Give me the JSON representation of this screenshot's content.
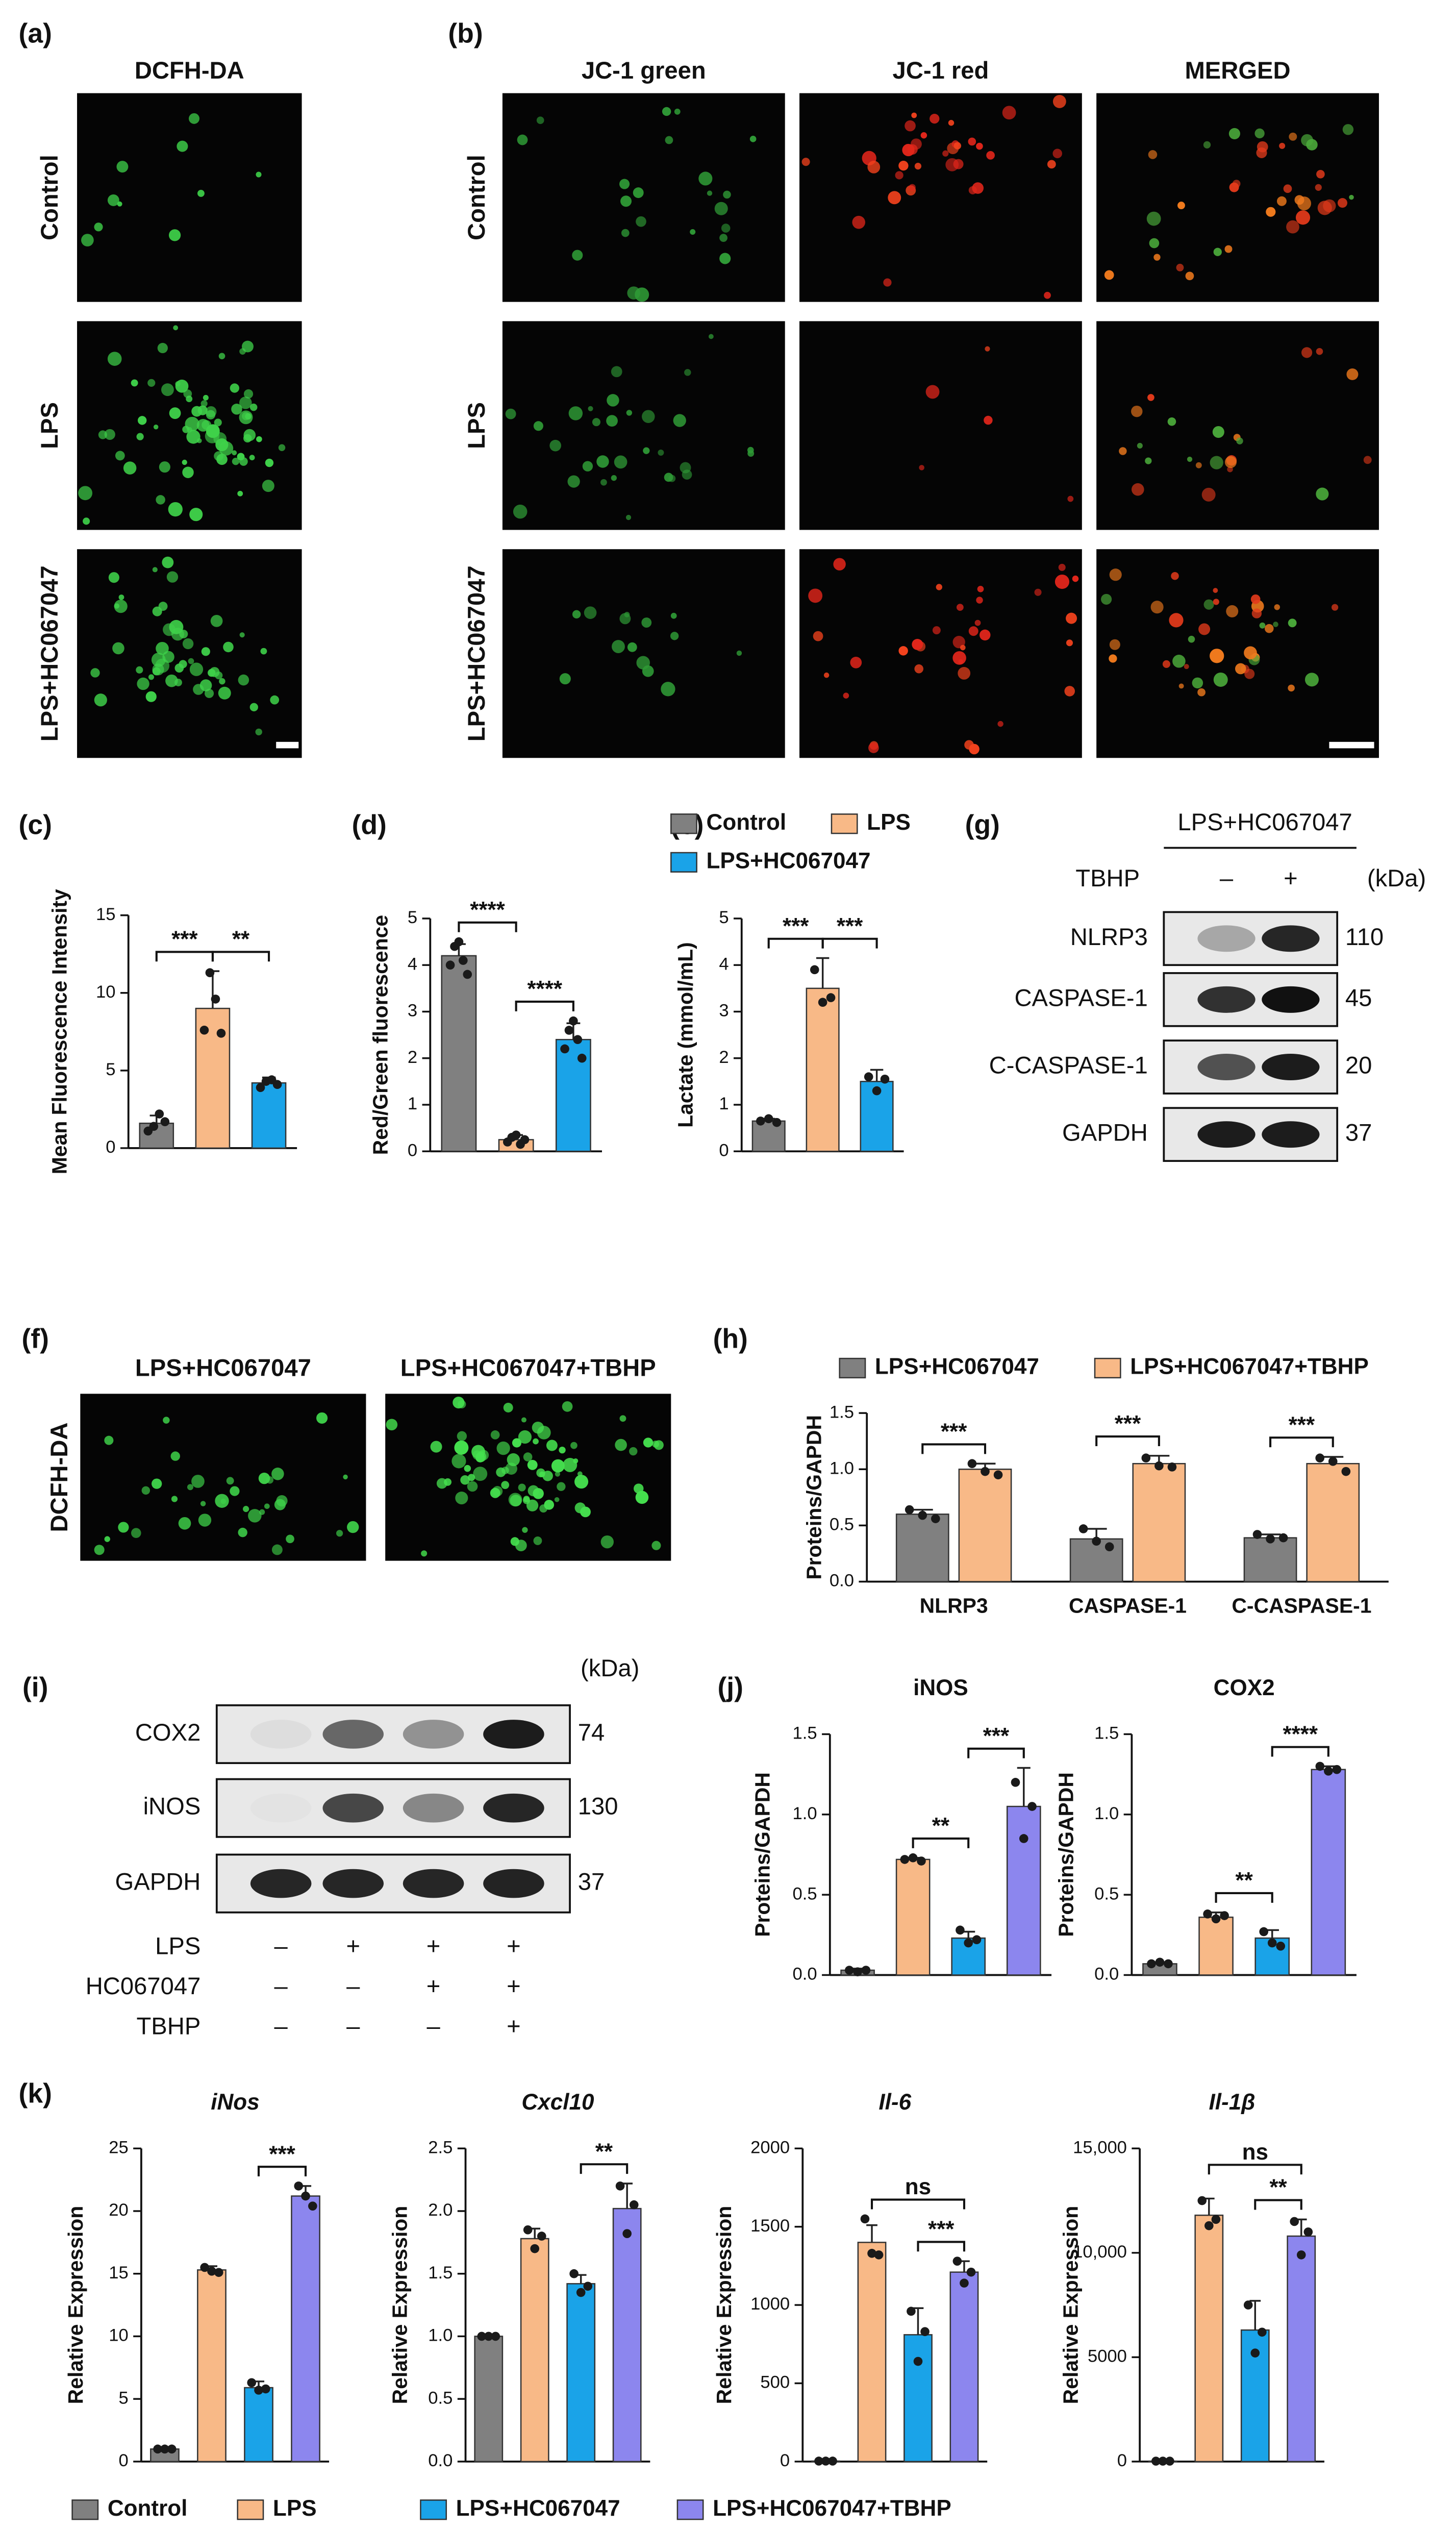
{
  "chart_data": [
    {
      "type": "bar",
      "panel": "(c)",
      "ylabel": "Mean Fluorescence Intensity",
      "ylim": [
        0,
        15
      ],
      "yticks": [
        0,
        5,
        10,
        15
      ],
      "values": [
        1.6,
        9.0,
        4.2
      ],
      "errors": [
        0.5,
        2.4,
        0.35
      ],
      "points": [
        [
          1.1,
          1.4,
          2.2,
          1.7
        ],
        [
          7.6,
          11.3,
          9.6,
          7.4
        ],
        [
          3.9,
          4.3,
          4.4,
          4.1
        ]
      ],
      "colors": [
        "#808080",
        "#f8b987",
        "#1aa3e8"
      ],
      "annotations": [
        {
          "text": "***",
          "from": 0,
          "to": 1
        },
        {
          "text": "**",
          "from": 1,
          "to": 2
        }
      ]
    },
    {
      "type": "bar",
      "panel": "(d)",
      "ylabel": "Red/Green fluorescence",
      "ylim": [
        0,
        5
      ],
      "yticks": [
        0,
        1,
        2,
        3,
        4,
        5
      ],
      "values": [
        4.2,
        0.25,
        2.4
      ],
      "errors": [
        0.25,
        0.1,
        0.35
      ],
      "points": [
        [
          4.0,
          4.4,
          4.5,
          4.1,
          3.8
        ],
        [
          0.2,
          0.3,
          0.35,
          0.15,
          0.25
        ],
        [
          2.2,
          2.6,
          2.8,
          2.4,
          2.0
        ]
      ],
      "colors": [
        "#808080",
        "#f8b987",
        "#1aa3e8"
      ],
      "annotations": [
        {
          "text": "****",
          "from": 0,
          "to": 1
        },
        {
          "text": "****",
          "from": 1,
          "to": 2
        }
      ]
    },
    {
      "type": "bar",
      "panel": "(e)",
      "ylabel": "Lactate (mmol/mL)",
      "ylim": [
        0,
        5
      ],
      "yticks": [
        0,
        1,
        2,
        3,
        4,
        5
      ],
      "values": [
        0.65,
        3.5,
        1.5
      ],
      "errors": [
        0.05,
        0.65,
        0.25
      ],
      "points": [
        [
          0.65,
          0.7,
          0.62
        ],
        [
          3.9,
          3.2,
          3.3
        ],
        [
          1.6,
          1.3,
          1.55
        ]
      ],
      "colors": [
        "#808080",
        "#f8b987",
        "#1aa3e8"
      ],
      "annotations": [
        {
          "text": "***",
          "from": 0,
          "to": 1
        },
        {
          "text": "***",
          "from": 1,
          "to": 2
        }
      ]
    },
    {
      "type": "grouped-bar",
      "panel": "(h)",
      "ylabel": "Proteins/GAPDH",
      "ylim": [
        0,
        1.5
      ],
      "yticks": [
        {
          "value": 0,
          "label": "0.0"
        },
        {
          "value": 0.5,
          "label": "0.5"
        },
        {
          "value": 1,
          "label": "1.0"
        },
        {
          "value": 1.5,
          "label": "1.5"
        }
      ],
      "categories": [
        "NLRP3",
        "CASPASE-1",
        "C-CASPASE-1"
      ],
      "series": [
        {
          "name": "LPS+HC067047",
          "color": "#808080",
          "values": [
            0.6,
            0.38,
            0.39
          ],
          "errors": [
            0.04,
            0.09,
            0.03
          ],
          "points": [
            [
              0.64,
              0.59,
              0.56
            ],
            [
              0.47,
              0.36,
              0.31
            ],
            [
              0.42,
              0.38,
              0.39
            ]
          ]
        },
        {
          "name": "LPS+HC067047+TBHP",
          "color": "#f8b987",
          "values": [
            1.0,
            1.05,
            1.05
          ],
          "errors": [
            0.05,
            0.07,
            0.06
          ],
          "points": [
            [
              1.05,
              0.98,
              0.95
            ],
            [
              1.1,
              1.03,
              1.02
            ],
            [
              1.1,
              1.07,
              0.98
            ]
          ]
        }
      ],
      "annotations": [
        {
          "text": "***",
          "category": 0
        },
        {
          "text": "***",
          "category": 1
        },
        {
          "text": "***",
          "category": 2
        }
      ]
    },
    {
      "type": "bar",
      "panel": "(j)",
      "title": "iNOS",
      "ylabel": "Proteins/GAPDH",
      "ylim": [
        0,
        1.5
      ],
      "yticks": [
        {
          "value": 0,
          "label": "0.0"
        },
        {
          "value": 0.5,
          "label": "0.5"
        },
        {
          "value": 1,
          "label": "1.0"
        },
        {
          "value": 1.5,
          "label": "1.5"
        }
      ],
      "values": [
        0.03,
        0.72,
        0.23,
        1.05
      ],
      "errors": [
        0.01,
        0.01,
        0.04,
        0.24
      ],
      "points": [
        [
          0.03,
          0.02,
          0.03
        ],
        [
          0.72,
          0.73,
          0.71
        ],
        [
          0.28,
          0.2,
          0.22
        ],
        [
          1.2,
          0.85,
          1.05
        ]
      ],
      "colors": [
        "#808080",
        "#f8b987",
        "#1aa3e8",
        "#8c86ee"
      ],
      "annotations": [
        {
          "text": "**",
          "from": 1,
          "to": 2
        },
        {
          "text": "***",
          "from": 2,
          "to": 3
        }
      ]
    },
    {
      "type": "bar",
      "title": "COX2",
      "ylabel": "Proteins/GAPDH",
      "ylim": [
        0,
        1.5
      ],
      "yticks": [
        {
          "value": 0,
          "label": "0.0"
        },
        {
          "value": 0.5,
          "label": "0.5"
        },
        {
          "value": 1,
          "label": "1.0"
        },
        {
          "value": 1.5,
          "label": "1.5"
        }
      ],
      "values": [
        0.07,
        0.36,
        0.23,
        1.28
      ],
      "errors": [
        0.01,
        0.03,
        0.05,
        0.02
      ],
      "points": [
        [
          0.07,
          0.08,
          0.07
        ],
        [
          0.38,
          0.35,
          0.37
        ],
        [
          0.27,
          0.2,
          0.18
        ],
        [
          1.3,
          1.27,
          1.28
        ]
      ],
      "colors": [
        "#808080",
        "#f8b987",
        "#1aa3e8",
        "#8c86ee"
      ],
      "annotations": [
        {
          "text": "**",
          "from": 1,
          "to": 2
        },
        {
          "text": "****",
          "from": 2,
          "to": 3
        }
      ]
    },
    {
      "type": "bar",
      "panel": "(k)",
      "title": "iNos",
      "ylabel": "Relative Expression",
      "ylim": [
        0,
        25
      ],
      "yticks": [
        0,
        5,
        10,
        15,
        20,
        25
      ],
      "values": [
        1.0,
        15.3,
        5.9,
        21.2
      ],
      "errors": [
        0.1,
        0.3,
        0.5,
        0.8
      ],
      "points": [
        [
          1.0,
          1.0,
          1.0
        ],
        [
          15.5,
          15.2,
          15.1
        ],
        [
          6.3,
          5.7,
          5.8
        ],
        [
          22.0,
          21.2,
          20.4
        ]
      ],
      "colors": [
        "#808080",
        "#f8b987",
        "#1aa3e8",
        "#8c86ee"
      ],
      "annotations": [
        {
          "text": "***",
          "from": 2,
          "to": 3
        }
      ]
    },
    {
      "type": "bar",
      "title": "Cxcl10",
      "ylabel": "Relative Expression",
      "ylim": [
        0,
        2.5
      ],
      "yticks": [
        {
          "value": 0,
          "label": "0.0"
        },
        {
          "value": 0.5,
          "label": "0.5"
        },
        {
          "value": 1,
          "label": "1.0"
        },
        {
          "value": 1.5,
          "label": "1.5"
        },
        {
          "value": 2,
          "label": "2.0"
        },
        {
          "value": 2.5,
          "label": "2.5"
        }
      ],
      "values": [
        1.0,
        1.78,
        1.42,
        2.02
      ],
      "errors": [
        0.01,
        0.08,
        0.07,
        0.2
      ],
      "points": [
        [
          1.0,
          1.0,
          1.0
        ],
        [
          1.85,
          1.7,
          1.8
        ],
        [
          1.5,
          1.35,
          1.4
        ],
        [
          2.2,
          1.82,
          2.05
        ]
      ],
      "colors": [
        "#808080",
        "#f8b987",
        "#1aa3e8",
        "#8c86ee"
      ],
      "annotations": [
        {
          "text": "**",
          "from": 2,
          "to": 3
        }
      ]
    },
    {
      "type": "bar",
      "title": "Il-6",
      "ylabel": "Relative Expression",
      "ylim": [
        0,
        2000
      ],
      "yticks": [
        0,
        500,
        1000,
        1500,
        2000
      ],
      "values": [
        3,
        1400,
        810,
        1210
      ],
      "errors": [
        2,
        110,
        170,
        70
      ],
      "points": [
        [
          3,
          3,
          3
        ],
        [
          1550,
          1330,
          1320
        ],
        [
          960,
          640,
          830
        ],
        [
          1280,
          1140,
          1210
        ]
      ],
      "colors": [
        "#808080",
        "#f8b987",
        "#1aa3e8",
        "#8c86ee"
      ],
      "annotations": [
        {
          "text": "***",
          "from": 2,
          "to": 3
        },
        {
          "text": "ns",
          "from": 1,
          "to": 3
        }
      ]
    },
    {
      "type": "bar",
      "title": "Il-1β",
      "ylabel": "Relative Expression",
      "ylim": [
        0,
        15000
      ],
      "yticks": [
        0,
        5000,
        {
          "value": 10000,
          "label": "10,000"
        },
        {
          "value": 15000,
          "label": "15,000"
        }
      ],
      "values": [
        20,
        11800,
        6300,
        10800
      ],
      "errors": [
        10,
        800,
        1400,
        800
      ],
      "points": [
        [
          20,
          20,
          20
        ],
        [
          12500,
          11300,
          11600
        ],
        [
          7500,
          5200,
          6200
        ],
        [
          11500,
          9900,
          11000
        ]
      ],
      "colors": [
        "#808080",
        "#f8b987",
        "#1aa3e8",
        "#8c86ee"
      ],
      "annotations": [
        {
          "text": "**",
          "from": 2,
          "to": 3
        },
        {
          "text": "ns",
          "from": 1,
          "to": 3
        }
      ]
    }
  ],
  "legends": [
    {
      "names": [
        "Control",
        "LPS",
        "LPS+HC067047"
      ],
      "colors": [
        "#808080",
        "#f8b987",
        "#1aa3e8"
      ]
    },
    {
      "names": [
        "Control",
        "LPS",
        "LPS+HC067047",
        "LPS+HC067047+TBHP"
      ],
      "colors": [
        "#808080",
        "#f8b987",
        "#1aa3e8",
        "#8c86ee"
      ]
    }
  ],
  "micrographs": [
    {
      "panel": "(a)",
      "columns": [
        "DCFH-DA"
      ],
      "rows": [
        "Control",
        "LPS",
        "LPS+HC067047"
      ]
    },
    {
      "panel": "(b)",
      "columns": [
        "JC-1 green",
        "JC-1 red",
        "MERGED"
      ],
      "rows": [
        "Control",
        "LPS",
        "LPS+HC067047"
      ]
    },
    {
      "panel": "(f)",
      "columns": [
        "LPS+HC067047",
        "LPS+HC067047+TBHP"
      ],
      "rows": [
        "DCFH-DA"
      ]
    }
  ],
  "blots": [
    {
      "panel": "(g)",
      "group": "LPS+HC067047",
      "unit": "(kDa)",
      "conditions": [
        {
          "name": "TBHP",
          "signs": [
            "–",
            "+"
          ]
        }
      ],
      "rows": [
        {
          "name": "NLRP3",
          "kda": 110
        },
        {
          "name": "CASPASE-1",
          "kda": 45
        },
        {
          "name": "C-CASPASE-1",
          "kda": 20
        },
        {
          "name": "GAPDH",
          "kda": 37
        }
      ]
    },
    {
      "panel": "(i)",
      "unit": "(kDa)",
      "conditions": [
        {
          "name": "LPS",
          "signs": [
            "–",
            "+",
            "+",
            "+"
          ]
        },
        {
          "name": "HC067047",
          "signs": [
            "–",
            "–",
            "+",
            "+"
          ]
        },
        {
          "name": "TBHP",
          "signs": [
            "–",
            "–",
            "–",
            "+"
          ]
        }
      ],
      "rows": [
        {
          "name": "COX2",
          "kda": 74
        },
        {
          "name": "iNOS",
          "kda": 130
        },
        {
          "name": "GAPDH",
          "kda": 37
        }
      ]
    }
  ]
}
